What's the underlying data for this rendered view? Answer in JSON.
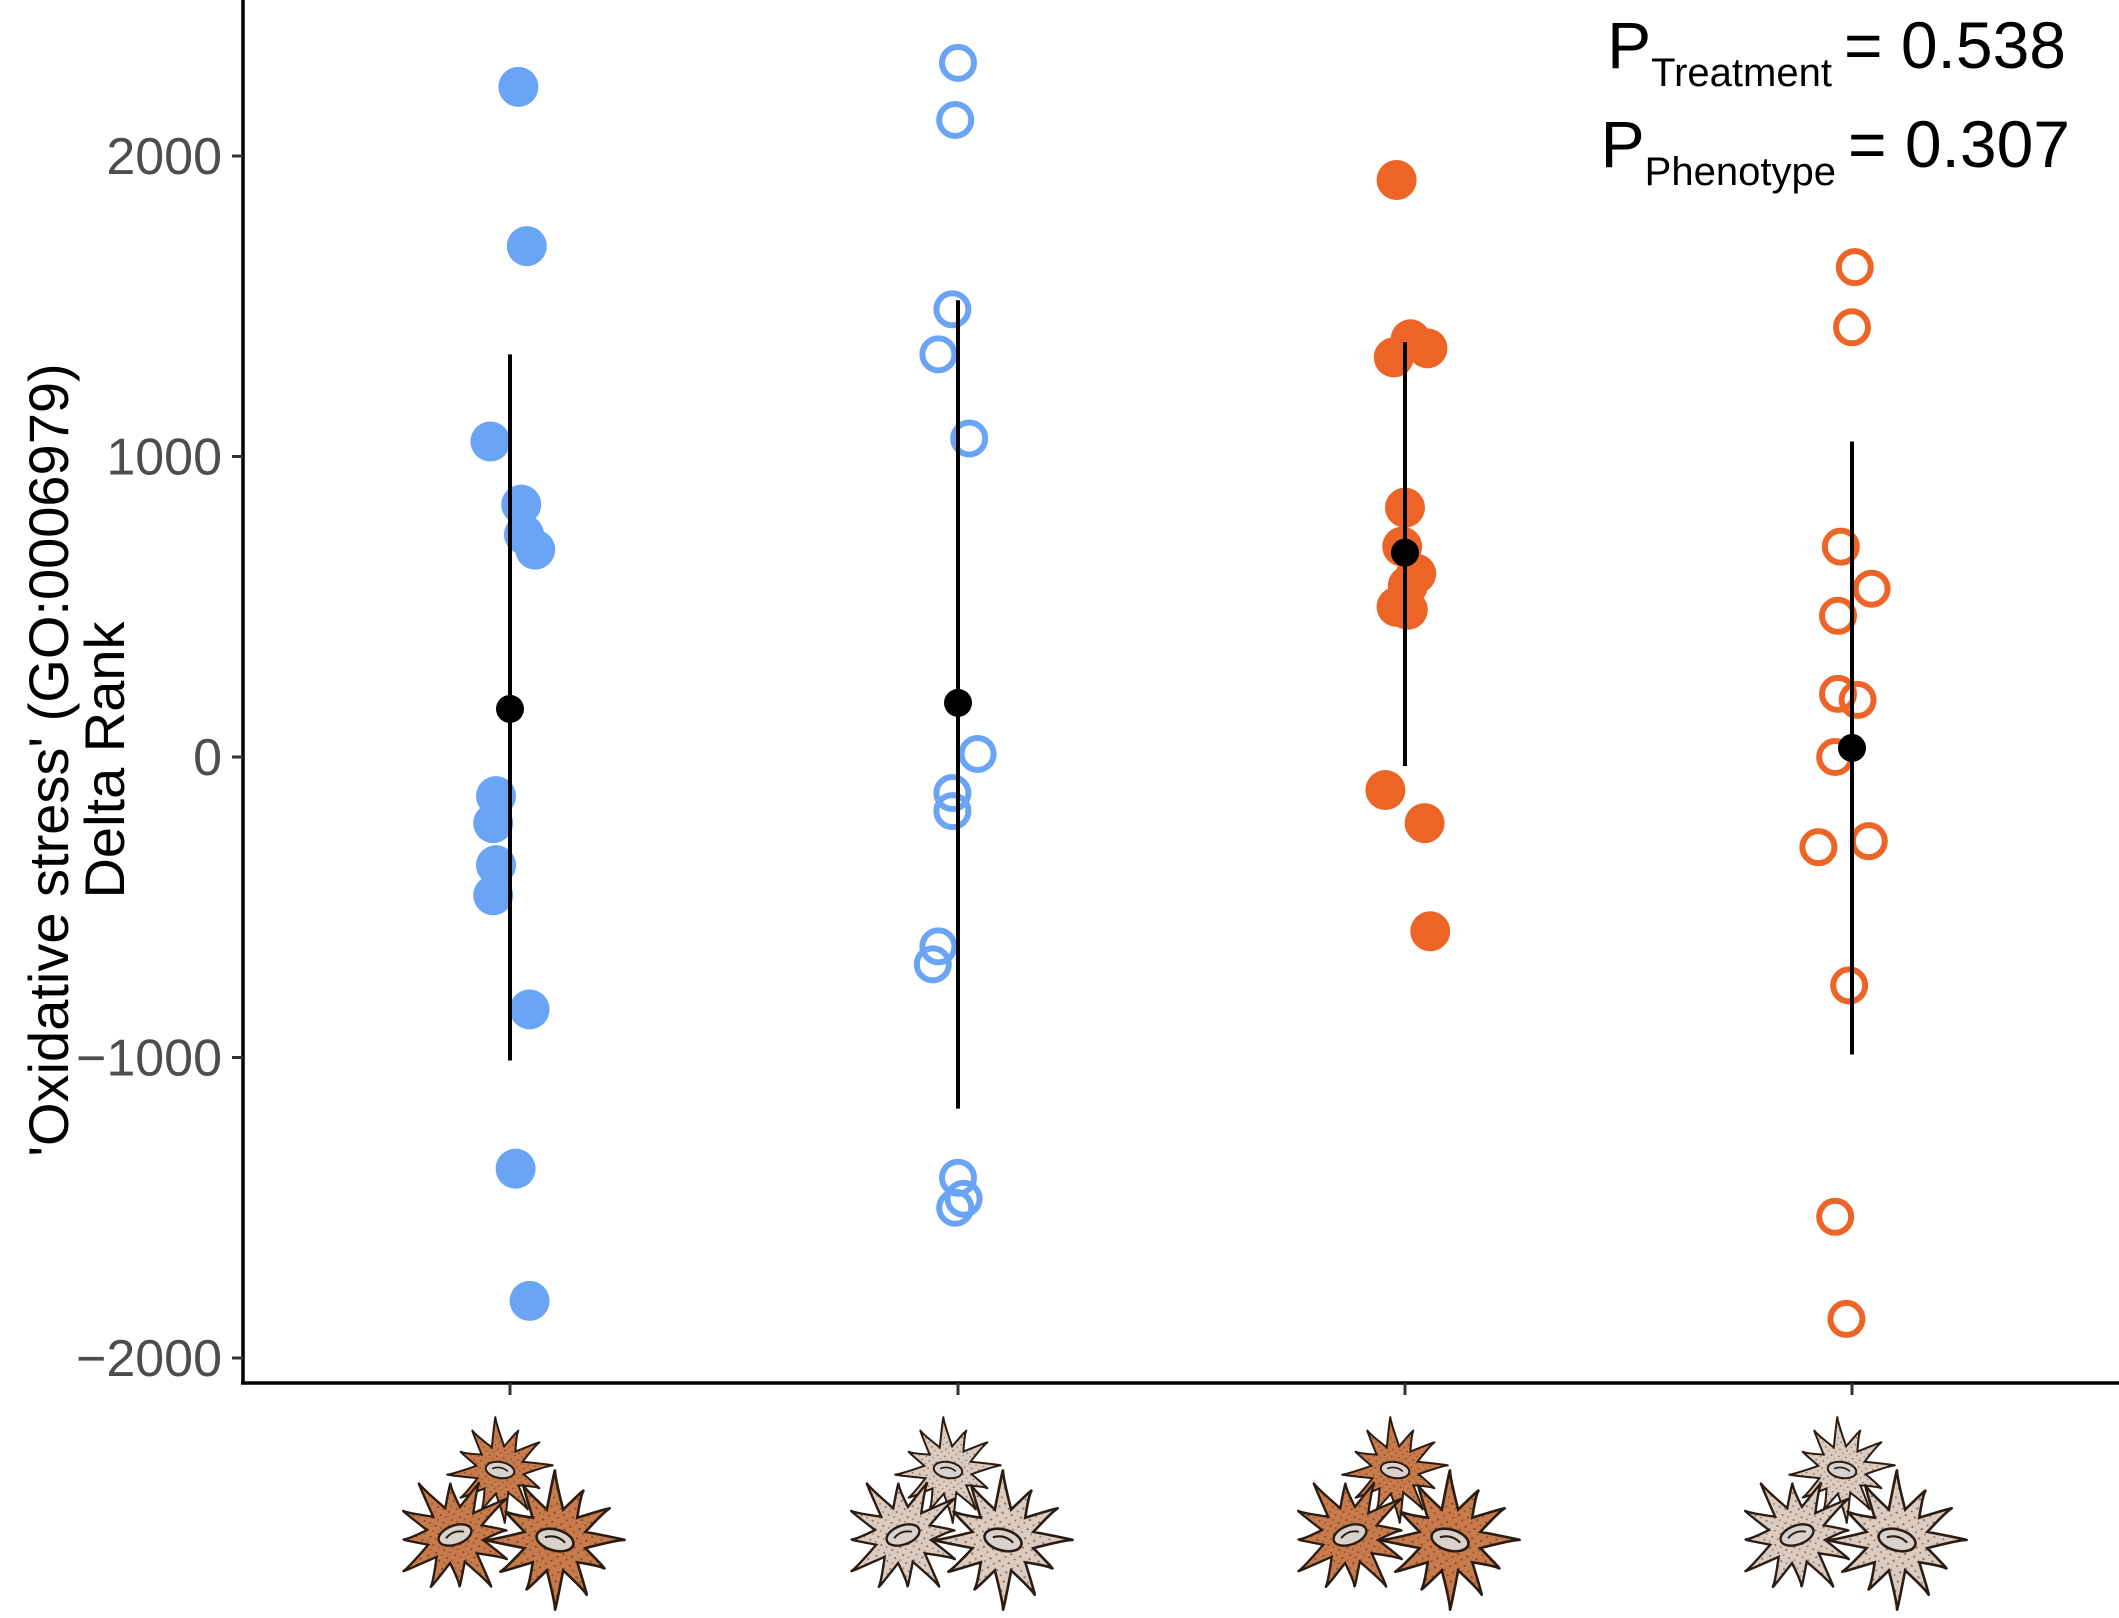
{
  "chart_data": {
    "type": "scatter",
    "ylabel_line1": "'Oxidative stress' (GO:0006979)",
    "ylabel_line2": "Delta Rank",
    "ylim": [
      -2080,
      2560
    ],
    "yticks": [
      -2000,
      -1000,
      0,
      1000,
      2000
    ],
    "ytick_labels": [
      "−2000",
      "−1000",
      "0",
      "1000",
      "2000"
    ],
    "grid": false,
    "annotations": [
      {
        "main": "P",
        "sub": "Treatment",
        "value": "= 0.538"
      },
      {
        "main": "P",
        "sub": "Phenotype",
        "value": "= 0.307"
      }
    ],
    "colors": {
      "blue": "#6aa5f5",
      "orange": "#ec6426",
      "mean": "#000000"
    },
    "groups": [
      {
        "color": "#6aa5f5",
        "filled": true,
        "icon": "brown-coral-polyp-icon",
        "mean": 160,
        "ci": [
          -1010,
          1340
        ],
        "points": [
          {
            "dx": 0.03,
            "y": 2230
          },
          {
            "dx": 0.06,
            "y": 1700
          },
          {
            "dx": -0.07,
            "y": 1050
          },
          {
            "dx": 0.04,
            "y": 840
          },
          {
            "dx": 0.05,
            "y": 740
          },
          {
            "dx": 0.09,
            "y": 690
          },
          {
            "dx": -0.05,
            "y": -130
          },
          {
            "dx": -0.06,
            "y": -220
          },
          {
            "dx": -0.05,
            "y": -360
          },
          {
            "dx": -0.06,
            "y": -460
          },
          {
            "dx": 0.07,
            "y": -840
          },
          {
            "dx": 0.02,
            "y": -1370
          },
          {
            "dx": 0.07,
            "y": -1810
          }
        ]
      },
      {
        "color": "#6aa5f5",
        "filled": false,
        "icon": "pale-coral-polyp-icon",
        "mean": 180,
        "ci": [
          -1170,
          1520
        ],
        "points": [
          {
            "dx": 0.0,
            "y": 2310
          },
          {
            "dx": -0.01,
            "y": 2120
          },
          {
            "dx": -0.02,
            "y": 1490
          },
          {
            "dx": -0.07,
            "y": 1340
          },
          {
            "dx": 0.04,
            "y": 1060
          },
          {
            "dx": 0.07,
            "y": 10
          },
          {
            "dx": -0.02,
            "y": -120
          },
          {
            "dx": -0.02,
            "y": -180
          },
          {
            "dx": -0.07,
            "y": -630
          },
          {
            "dx": -0.09,
            "y": -690
          },
          {
            "dx": 0.0,
            "y": -1400
          },
          {
            "dx": 0.02,
            "y": -1470
          },
          {
            "dx": -0.01,
            "y": -1500
          }
        ]
      },
      {
        "color": "#ec6426",
        "filled": true,
        "icon": "brown-coral-polyp-icon",
        "mean": 680,
        "ci": [
          -30,
          1380
        ],
        "points": [
          {
            "dx": -0.03,
            "y": 1920
          },
          {
            "dx": 0.02,
            "y": 1390
          },
          {
            "dx": 0.08,
            "y": 1360
          },
          {
            "dx": -0.04,
            "y": 1330
          },
          {
            "dx": 0.0,
            "y": 830
          },
          {
            "dx": -0.01,
            "y": 700
          },
          {
            "dx": 0.04,
            "y": 610
          },
          {
            "dx": 0.01,
            "y": 570
          },
          {
            "dx": -0.03,
            "y": 500
          },
          {
            "dx": 0.01,
            "y": 490
          },
          {
            "dx": -0.07,
            "y": -110
          },
          {
            "dx": 0.07,
            "y": -220
          },
          {
            "dx": 0.09,
            "y": -580
          }
        ]
      },
      {
        "color": "#ec6426",
        "filled": false,
        "icon": "pale-coral-polyp-icon",
        "mean": 30,
        "ci": [
          -990,
          1050
        ],
        "points": [
          {
            "dx": 0.01,
            "y": 1630
          },
          {
            "dx": 0.0,
            "y": 1430
          },
          {
            "dx": -0.04,
            "y": 700
          },
          {
            "dx": 0.07,
            "y": 560
          },
          {
            "dx": -0.05,
            "y": 470
          },
          {
            "dx": -0.05,
            "y": 210
          },
          {
            "dx": 0.02,
            "y": 190
          },
          {
            "dx": -0.06,
            "y": 0
          },
          {
            "dx": -0.12,
            "y": -300
          },
          {
            "dx": 0.06,
            "y": -280
          },
          {
            "dx": -0.01,
            "y": -760
          },
          {
            "dx": -0.06,
            "y": -1530
          },
          {
            "dx": -0.02,
            "y": -1870
          }
        ]
      }
    ]
  }
}
